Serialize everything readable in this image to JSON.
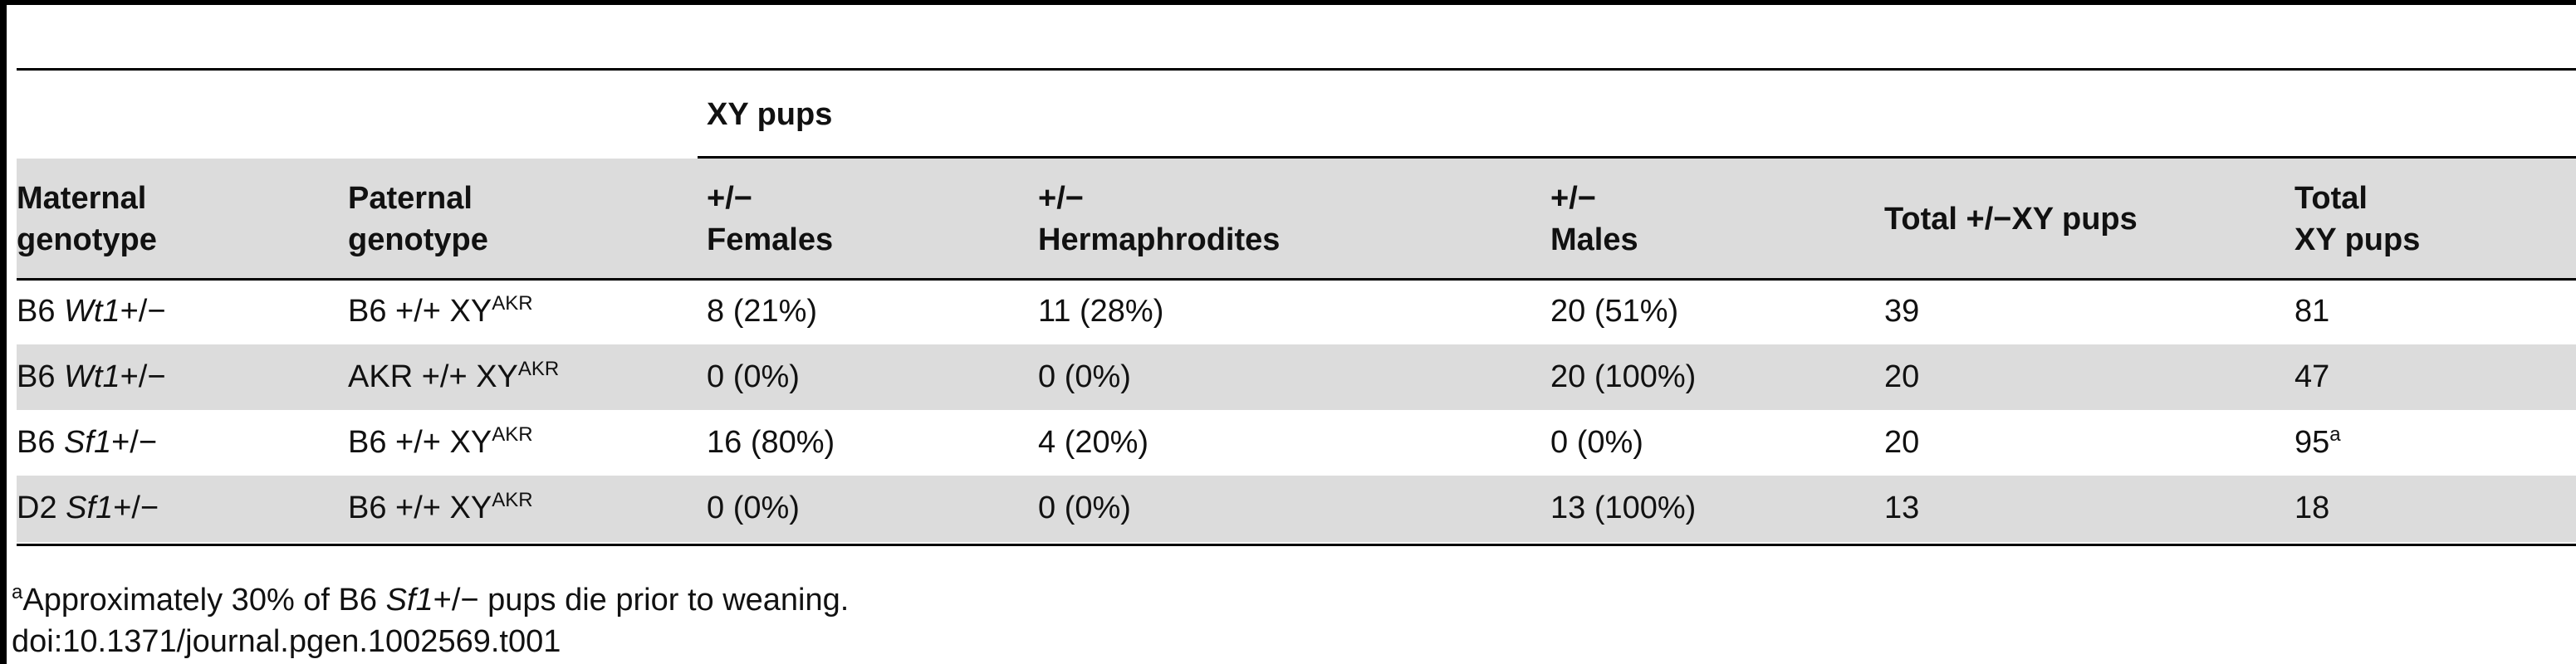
{
  "table": {
    "group_header": "XY pups",
    "columns": [
      [
        "Maternal",
        "genotype"
      ],
      [
        "Paternal",
        "genotype"
      ],
      [
        "+/−",
        "Females"
      ],
      [
        "+/−",
        "Hermaphrodites"
      ],
      [
        "+/−",
        "Males"
      ],
      [
        "Total +/−XY pups"
      ],
      [
        "Total",
        "XY pups"
      ]
    ],
    "rows": [
      [
        [
          {
            "text": "B6 "
          },
          {
            "italic": "Wt1"
          },
          {
            "text": "+/−"
          }
        ],
        [
          {
            "text": "B6 +/+ XY"
          },
          {
            "sup": "AKR"
          }
        ],
        [
          {
            "text": "8 (21%)"
          }
        ],
        [
          {
            "text": "11 (28%)"
          }
        ],
        [
          {
            "text": "20 (51%)"
          }
        ],
        [
          {
            "text": "39"
          }
        ],
        [
          {
            "text": "81"
          }
        ]
      ],
      [
        [
          {
            "text": "B6 "
          },
          {
            "italic": "Wt1"
          },
          {
            "text": "+/−"
          }
        ],
        [
          {
            "text": "AKR +/+ XY"
          },
          {
            "sup": "AKR"
          }
        ],
        [
          {
            "text": "0 (0%)"
          }
        ],
        [
          {
            "text": "0 (0%)"
          }
        ],
        [
          {
            "text": "20 (100%)"
          }
        ],
        [
          {
            "text": "20"
          }
        ],
        [
          {
            "text": "47"
          }
        ]
      ],
      [
        [
          {
            "text": "B6 "
          },
          {
            "italic": "Sf1"
          },
          {
            "text": "+/−"
          }
        ],
        [
          {
            "text": "B6 +/+ XY"
          },
          {
            "sup": "AKR"
          }
        ],
        [
          {
            "text": "16 (80%)"
          }
        ],
        [
          {
            "text": "4 (20%)"
          }
        ],
        [
          {
            "text": "0 (0%)"
          }
        ],
        [
          {
            "text": "20"
          }
        ],
        [
          {
            "text": "95"
          },
          {
            "sup": "a"
          }
        ]
      ],
      [
        [
          {
            "text": "D2 "
          },
          {
            "italic": "Sf1"
          },
          {
            "text": "+/−"
          }
        ],
        [
          {
            "text": "B6 +/+ XY"
          },
          {
            "sup": "AKR"
          }
        ],
        [
          {
            "text": "0 (0%)"
          }
        ],
        [
          {
            "text": "0 (0%)"
          }
        ],
        [
          {
            "text": "13 (100%)"
          }
        ],
        [
          {
            "text": "13"
          }
        ],
        [
          {
            "text": "18"
          }
        ]
      ]
    ],
    "footnote": [
      {
        "sup": "a"
      },
      {
        "text": "Approximately 30% of B6 "
      },
      {
        "italic": "Sf1"
      },
      {
        "text": "+/− pups die prior to weaning."
      }
    ],
    "doi": "doi:10.1371/journal.pgen.1002569.t001"
  }
}
